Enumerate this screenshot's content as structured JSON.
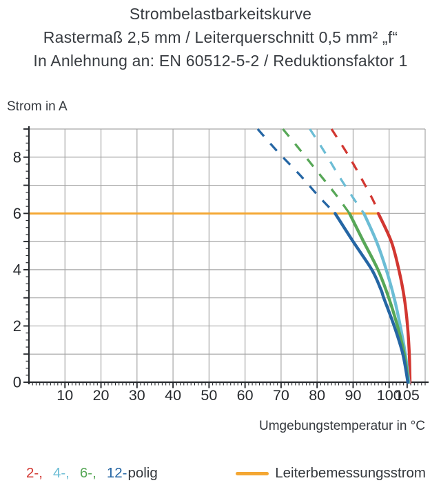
{
  "title": {
    "line1": "Strombelastbarkeitskurve",
    "line2": "Rastermaß 2,5 mm / Leiterquerschnitt 0,5 mm² „f“",
    "line3": "In Anlehnung an: EN 60512-5-2 / Reduktionsfaktor 1"
  },
  "chart_data": {
    "type": "line",
    "title": "Strombelastbarkeitskurve",
    "xlabel": "Umgebungstemperatur in °C",
    "ylabel": "Strom in A",
    "xlim": [
      0,
      110
    ],
    "ylim": [
      0,
      9
    ],
    "grid": true,
    "x_tick_labels": [
      10,
      20,
      30,
      40,
      50,
      60,
      70,
      80,
      90,
      100,
      105
    ],
    "x_grid_step": 10,
    "x_minor_tick_step": 1,
    "y_tick_labels": [
      0,
      2,
      4,
      6,
      8
    ],
    "y_grid_step": 1,
    "y_minor_tick_step": 0.25,
    "colors": {
      "grid": "#a6a6a6",
      "axis": "#26292d",
      "tick_text": "#26292d"
    },
    "rated_line": {
      "label": "Leiterbemessungsstrom",
      "current_a": 6,
      "x_from": 0,
      "x_to": 96.7,
      "color": "#f4a733"
    },
    "series": [
      {
        "name": "2-polig",
        "color": "#d23731",
        "dashed_above_a": 6,
        "points_dashed": [
          [
            84,
            9
          ],
          [
            88.5,
            8.1
          ],
          [
            92.5,
            7.2
          ],
          [
            95.8,
            6.4
          ],
          [
            97,
            6
          ]
        ],
        "points_solid": [
          [
            97,
            6
          ],
          [
            100.6,
            5
          ],
          [
            102.7,
            4
          ],
          [
            104.2,
            3
          ],
          [
            105.1,
            2
          ],
          [
            105.6,
            1
          ],
          [
            105.8,
            0
          ]
        ]
      },
      {
        "name": "4-polig",
        "color": "#6cbdd5",
        "dashed_above_a": 6,
        "points_dashed": [
          [
            78,
            9
          ],
          [
            82,
            8.2
          ],
          [
            86.2,
            7.3
          ],
          [
            90.3,
            6.5
          ],
          [
            93,
            6
          ]
        ],
        "points_solid": [
          [
            93,
            6
          ],
          [
            96.5,
            5
          ],
          [
            99.2,
            4
          ],
          [
            101.4,
            3
          ],
          [
            103.1,
            2
          ],
          [
            104.5,
            1
          ],
          [
            105.5,
            0
          ]
        ]
      },
      {
        "name": "6-polig",
        "color": "#57a757",
        "dashed_above_a": 6,
        "points_dashed": [
          [
            70.5,
            9
          ],
          [
            75,
            8.3
          ],
          [
            80,
            7.5
          ],
          [
            85,
            6.7
          ],
          [
            89,
            6
          ]
        ],
        "points_solid": [
          [
            89,
            6
          ],
          [
            92.9,
            5
          ],
          [
            96.9,
            4
          ],
          [
            99.9,
            3
          ],
          [
            102.3,
            2
          ],
          [
            104.2,
            1
          ],
          [
            105.3,
            0
          ]
        ]
      },
      {
        "name": "12-polig",
        "color": "#2566a4",
        "dashed_above_a": 6,
        "points_dashed": [
          [
            63.5,
            9
          ],
          [
            69,
            8.2
          ],
          [
            75,
            7.4
          ],
          [
            80.5,
            6.6
          ],
          [
            85,
            6
          ]
        ],
        "points_solid": [
          [
            85,
            6
          ],
          [
            90,
            5
          ],
          [
            95.2,
            4
          ],
          [
            97.7,
            3.3
          ],
          [
            98.5,
            3
          ],
          [
            101.4,
            2
          ],
          [
            103.8,
            1
          ],
          [
            105.2,
            0
          ]
        ]
      }
    ],
    "legend": {
      "pole_items": [
        {
          "label": "2-,",
          "color": "#d23731"
        },
        {
          "label": "4-,",
          "color": "#6cbdd5"
        },
        {
          "label": "6-,",
          "color": "#57a757"
        },
        {
          "label": "12-",
          "color": "#2566a4"
        }
      ],
      "suffix": "polig",
      "rated_label": "Leiterbemessungsstrom"
    }
  }
}
